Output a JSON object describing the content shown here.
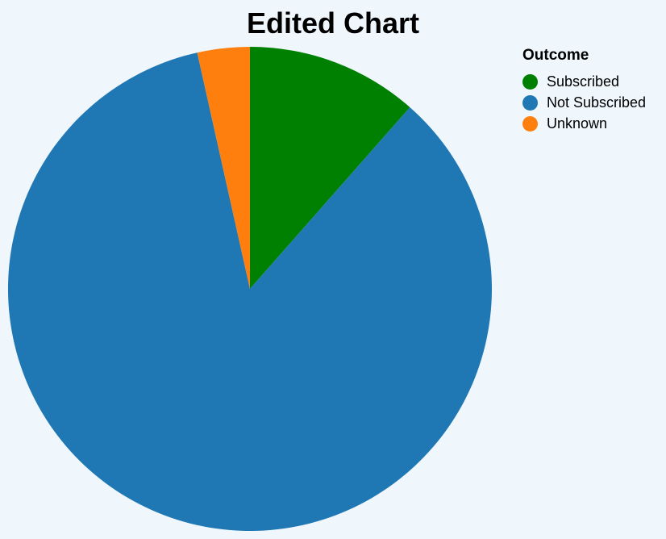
{
  "chart_data": {
    "type": "pie",
    "title": "Edited Chart",
    "legend_title": "Outcome",
    "legend_position": "top-right",
    "slices": [
      {
        "label": "Subscribed",
        "value": 11.5,
        "color": "#008000"
      },
      {
        "label": "Not Subscribed",
        "value": 85.0,
        "color": "#1f77b4"
      },
      {
        "label": "Unknown",
        "value": 3.5,
        "color": "#ff7f0e"
      }
    ]
  }
}
